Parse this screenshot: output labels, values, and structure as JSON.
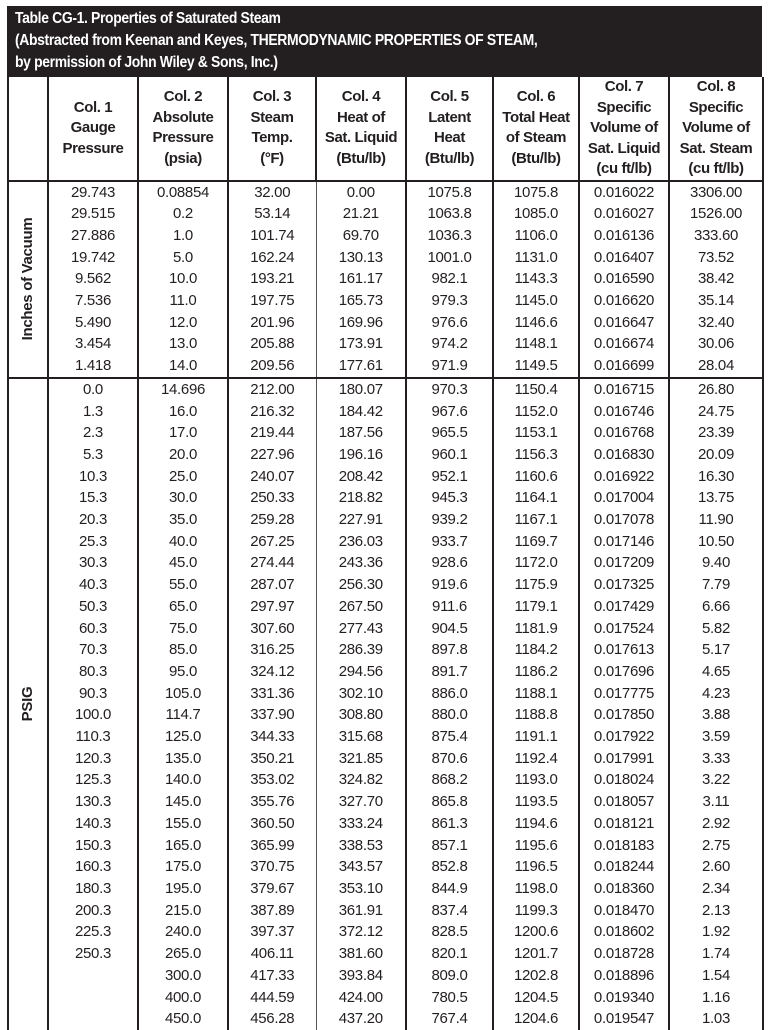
{
  "title": {
    "line1": "Table CG-1. Properties of Saturated Steam",
    "line2": "(Abstracted from Keenan and Keyes, THERMODYNAMIC PROPERTIES OF STEAM,",
    "line3": "by permission of John Wiley & Sons, Inc.)"
  },
  "headers": [
    [
      "Col. 1",
      "Gauge",
      "Pressure"
    ],
    [
      "Col. 2",
      "Absolute",
      "Pressure",
      "(psia)"
    ],
    [
      "Col. 3",
      "Steam",
      "Temp.",
      "(°F)"
    ],
    [
      "Col. 4",
      "Heat of",
      "Sat. Liquid",
      "(Btu/lb)"
    ],
    [
      "Col. 5",
      "Latent",
      "Heat",
      "(Btu/lb)"
    ],
    [
      "Col. 6",
      "Total Heat",
      "of Steam",
      "(Btu/lb)"
    ],
    [
      "Col. 7",
      "Specific",
      "Volume of",
      "Sat. Liquid",
      "(cu ft/lb)"
    ],
    [
      "Col. 8",
      "Specific",
      "Volume of",
      "Sat. Steam",
      "(cu ft/lb)"
    ]
  ],
  "sections": [
    {
      "label": "Inches of Vacuum",
      "rows": [
        [
          "29.743",
          "0.08854",
          "32.00",
          "0.00",
          "1075.8",
          "1075.8",
          "0.016022",
          "3306.00"
        ],
        [
          "29.515",
          "0.2",
          "53.14",
          "21.21",
          "1063.8",
          "1085.0",
          "0.016027",
          "1526.00"
        ],
        [
          "27.886",
          "1.0",
          "101.74",
          "69.70",
          "1036.3",
          "1106.0",
          "0.016136",
          "333.60"
        ],
        [
          "19.742",
          "5.0",
          "162.24",
          "130.13",
          "1001.0",
          "1131.0",
          "0.016407",
          "73.52"
        ],
        [
          "9.562",
          "10.0",
          "193.21",
          "161.17",
          "982.1",
          "1143.3",
          "0.016590",
          "38.42"
        ],
        [
          "7.536",
          "11.0",
          "197.75",
          "165.73",
          "979.3",
          "1145.0",
          "0.016620",
          "35.14"
        ],
        [
          "5.490",
          "12.0",
          "201.96",
          "169.96",
          "976.6",
          "1146.6",
          "0.016647",
          "32.40"
        ],
        [
          "3.454",
          "13.0",
          "205.88",
          "173.91",
          "974.2",
          "1148.1",
          "0.016674",
          "30.06"
        ],
        [
          "1.418",
          "14.0",
          "209.56",
          "177.61",
          "971.9",
          "1149.5",
          "0.016699",
          "28.04"
        ]
      ]
    },
    {
      "label": "PSIG",
      "rows": [
        [
          "0.0",
          "14.696",
          "212.00",
          "180.07",
          "970.3",
          "1150.4",
          "0.016715",
          "26.80"
        ],
        [
          "1.3",
          "16.0",
          "216.32",
          "184.42",
          "967.6",
          "1152.0",
          "0.016746",
          "24.75"
        ],
        [
          "2.3",
          "17.0",
          "219.44",
          "187.56",
          "965.5",
          "1153.1",
          "0.016768",
          "23.39"
        ],
        [
          "5.3",
          "20.0",
          "227.96",
          "196.16",
          "960.1",
          "1156.3",
          "0.016830",
          "20.09"
        ],
        [
          "10.3",
          "25.0",
          "240.07",
          "208.42",
          "952.1",
          "1160.6",
          "0.016922",
          "16.30"
        ],
        [
          "15.3",
          "30.0",
          "250.33",
          "218.82",
          "945.3",
          "1164.1",
          "0.017004",
          "13.75"
        ],
        [
          "20.3",
          "35.0",
          "259.28",
          "227.91",
          "939.2",
          "1167.1",
          "0.017078",
          "11.90"
        ],
        [
          "25.3",
          "40.0",
          "267.25",
          "236.03",
          "933.7",
          "1169.7",
          "0.017146",
          "10.50"
        ],
        [
          "30.3",
          "45.0",
          "274.44",
          "243.36",
          "928.6",
          "1172.0",
          "0.017209",
          "9.40"
        ],
        [
          "40.3",
          "55.0",
          "287.07",
          "256.30",
          "919.6",
          "1175.9",
          "0.017325",
          "7.79"
        ],
        [
          "50.3",
          "65.0",
          "297.97",
          "267.50",
          "911.6",
          "1179.1",
          "0.017429",
          "6.66"
        ],
        [
          "60.3",
          "75.0",
          "307.60",
          "277.43",
          "904.5",
          "1181.9",
          "0.017524",
          "5.82"
        ],
        [
          "70.3",
          "85.0",
          "316.25",
          "286.39",
          "897.8",
          "1184.2",
          "0.017613",
          "5.17"
        ],
        [
          "80.3",
          "95.0",
          "324.12",
          "294.56",
          "891.7",
          "1186.2",
          "0.017696",
          "4.65"
        ],
        [
          "90.3",
          "105.0",
          "331.36",
          "302.10",
          "886.0",
          "1188.1",
          "0.017775",
          "4.23"
        ],
        [
          "100.0",
          "114.7",
          "337.90",
          "308.80",
          "880.0",
          "1188.8",
          "0.017850",
          "3.88"
        ],
        [
          "110.3",
          "125.0",
          "344.33",
          "315.68",
          "875.4",
          "1191.1",
          "0.017922",
          "3.59"
        ],
        [
          "120.3",
          "135.0",
          "350.21",
          "321.85",
          "870.6",
          "1192.4",
          "0.017991",
          "3.33"
        ],
        [
          "125.3",
          "140.0",
          "353.02",
          "324.82",
          "868.2",
          "1193.0",
          "0.018024",
          "3.22"
        ],
        [
          "130.3",
          "145.0",
          "355.76",
          "327.70",
          "865.8",
          "1193.5",
          "0.018057",
          "3.11"
        ],
        [
          "140.3",
          "155.0",
          "360.50",
          "333.24",
          "861.3",
          "1194.6",
          "0.018121",
          "2.92"
        ],
        [
          "150.3",
          "165.0",
          "365.99",
          "338.53",
          "857.1",
          "1195.6",
          "0.018183",
          "2.75"
        ],
        [
          "160.3",
          "175.0",
          "370.75",
          "343.57",
          "852.8",
          "1196.5",
          "0.018244",
          "2.60"
        ],
        [
          "180.3",
          "195.0",
          "379.67",
          "353.10",
          "844.9",
          "1198.0",
          "0.018360",
          "2.34"
        ],
        [
          "200.3",
          "215.0",
          "387.89",
          "361.91",
          "837.4",
          "1199.3",
          "0.018470",
          "2.13"
        ],
        [
          "225.3",
          "240.0",
          "397.37",
          "372.12",
          "828.5",
          "1200.6",
          "0.018602",
          "1.92"
        ],
        [
          "250.3",
          "265.0",
          "406.11",
          "381.60",
          "820.1",
          "1201.7",
          "0.018728",
          "1.74"
        ],
        [
          "",
          "300.0",
          "417.33",
          "393.84",
          "809.0",
          "1202.8",
          "0.018896",
          "1.54"
        ],
        [
          "",
          "400.0",
          "444.59",
          "424.00",
          "780.5",
          "1204.5",
          "0.019340",
          "1.16"
        ],
        [
          "",
          "450.0",
          "456.28",
          "437.20",
          "767.4",
          "1204.6",
          "0.019547",
          "1.03"
        ]
      ]
    }
  ]
}
